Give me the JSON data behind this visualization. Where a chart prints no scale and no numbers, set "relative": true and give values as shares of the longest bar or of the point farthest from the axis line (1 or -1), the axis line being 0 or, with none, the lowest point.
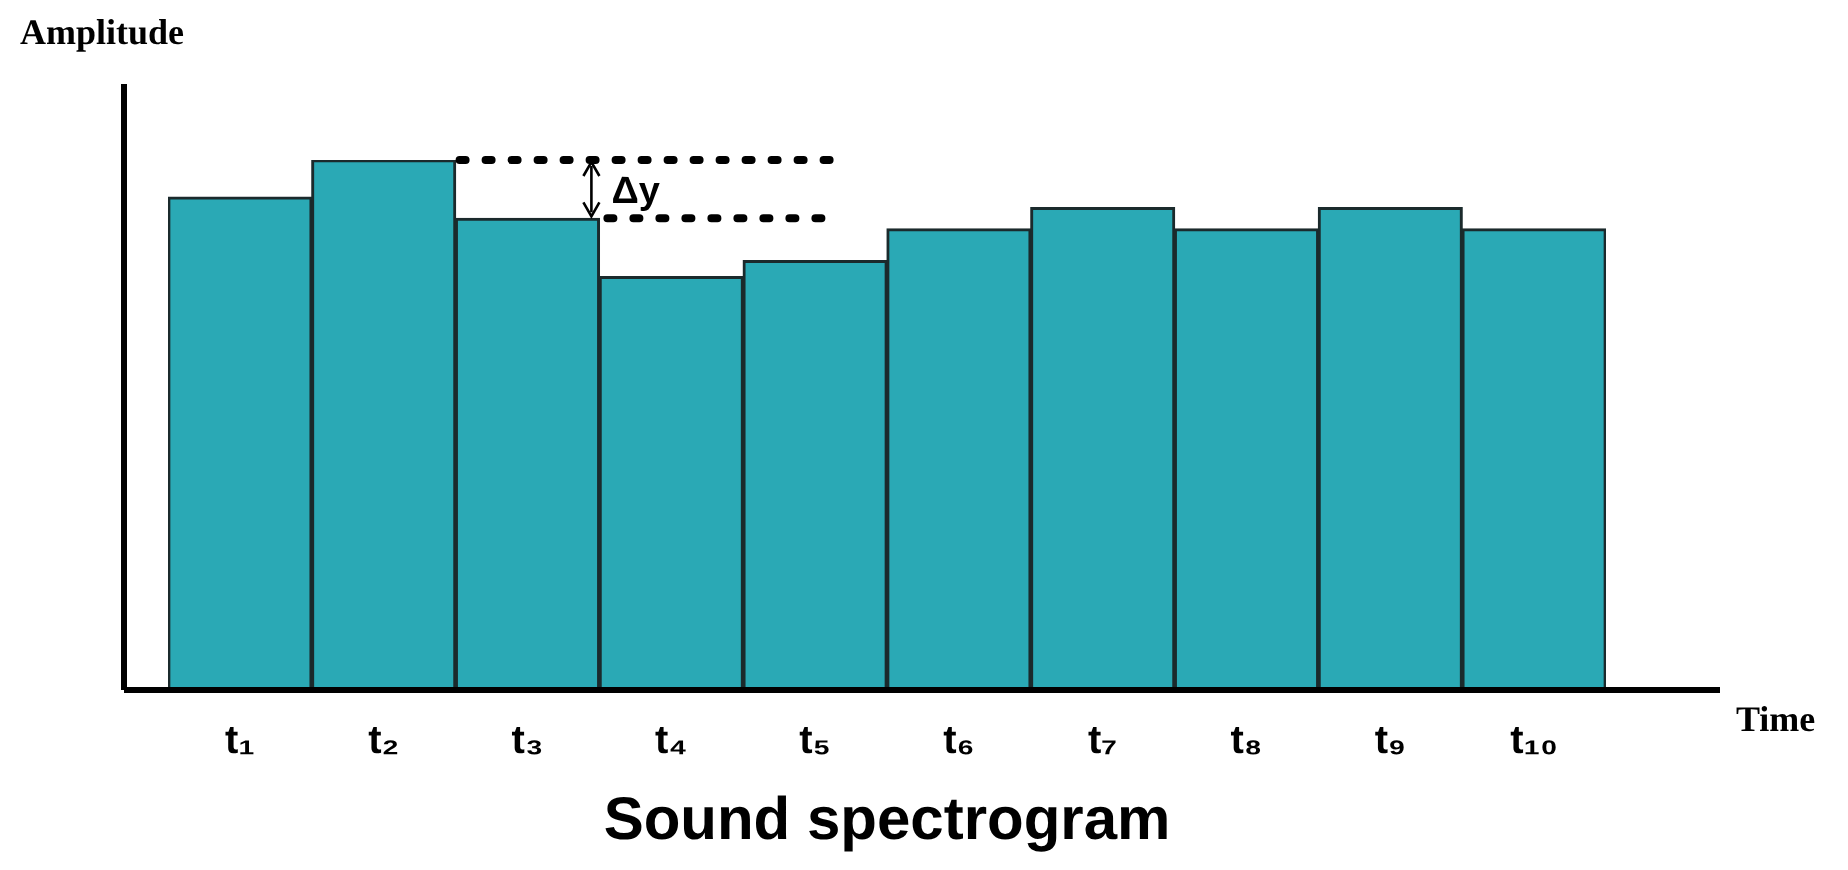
{
  "chart_data": {
    "type": "bar",
    "relative": true,
    "xlabel": "Time",
    "ylabel": "Amplitude",
    "title": "Sound spectrogram",
    "categories": [
      "t₁",
      "t₂",
      "t₃",
      "t₄",
      "t₅",
      "t₆",
      "t₇",
      "t₈",
      "t₉",
      "t₁₀"
    ],
    "values": [
      0.93,
      1,
      0.89,
      0.78,
      0.81,
      0.87,
      0.91,
      0.87,
      0.91,
      0.87
    ],
    "color": "#2aa9b5",
    "annotations": [
      "Δy"
    ],
    "grid": false,
    "legend": false
  }
}
